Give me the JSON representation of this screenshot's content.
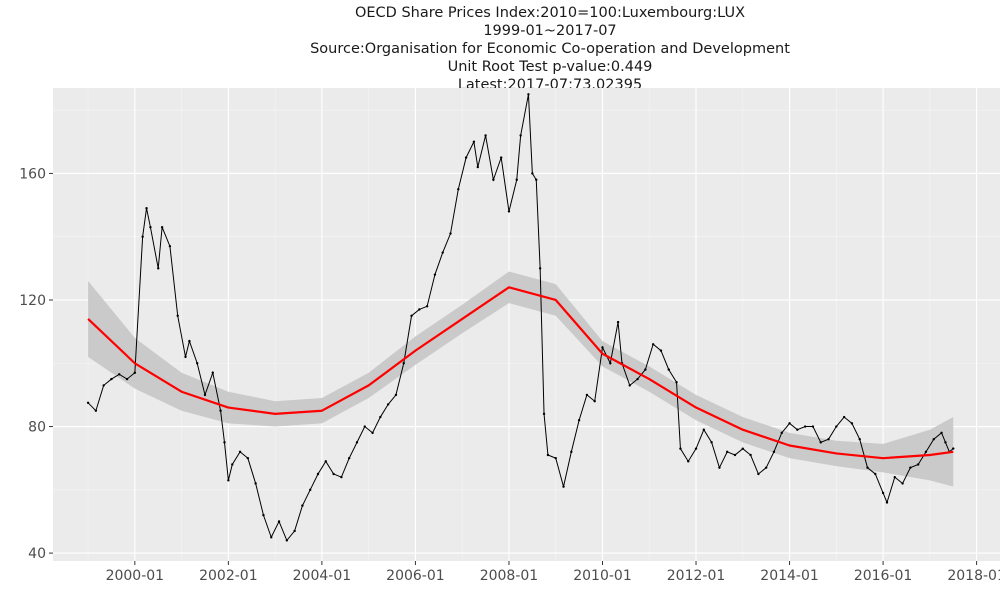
{
  "title_lines": [
    "OECD Share Prices Index:2010=100:Luxembourg:LUX",
    "1999-01~2017-07",
    "Source:Organisation for Economic Co-operation and Development",
    "Unit Root Test p-value:0.449",
    "Latest:2017-07:73.02395"
  ],
  "chart_data": {
    "type": "line",
    "title": "OECD Share Prices Index:2010=100:Luxembourg:LUX",
    "subtitle": "1999-01~2017-07",
    "xlabel": "",
    "ylabel": "",
    "x_ticks": [
      "2000-01",
      "2002-01",
      "2004-01",
      "2006-01",
      "2008-01",
      "2010-01",
      "2012-01",
      "2014-01",
      "2016-01",
      "2018-01"
    ],
    "y_ticks": [
      40,
      80,
      120,
      160
    ],
    "xlim": [
      "1998-04",
      "2018-07"
    ],
    "ylim": [
      37.5,
      187
    ],
    "grid": true,
    "background": "#ebebeb",
    "colors": {
      "series": "#000000",
      "trend": "#ff0000",
      "band": "#c8c8c8",
      "grid_major": "#ffffff"
    },
    "series": [
      {
        "points": [
          [
            "1999-01",
            87.5
          ],
          [
            "1999-03",
            85
          ],
          [
            "1999-05",
            93
          ],
          [
            "1999-07",
            95
          ],
          [
            "1999-09",
            96.5
          ],
          [
            "1999-11",
            95
          ],
          [
            "2000-01",
            97
          ],
          [
            "2000-03",
            140
          ],
          [
            "2000-04",
            149
          ],
          [
            "2000-05",
            143
          ],
          [
            "2000-07",
            130
          ],
          [
            "2000-08",
            143
          ],
          [
            "2000-10",
            137
          ],
          [
            "2000-12",
            115
          ],
          [
            "2001-02",
            102
          ],
          [
            "2001-03",
            107
          ],
          [
            "2001-05",
            100
          ],
          [
            "2001-07",
            90
          ],
          [
            "2001-09",
            97
          ],
          [
            "2001-11",
            85
          ],
          [
            "2001-12",
            75
          ],
          [
            "2002-01",
            63
          ],
          [
            "2002-02",
            68
          ],
          [
            "2002-04",
            72
          ],
          [
            "2002-06",
            70
          ],
          [
            "2002-08",
            62
          ],
          [
            "2002-10",
            52
          ],
          [
            "2002-12",
            45
          ],
          [
            "2003-02",
            50
          ],
          [
            "2003-04",
            44
          ],
          [
            "2003-06",
            47
          ],
          [
            "2003-08",
            55
          ],
          [
            "2003-10",
            60
          ],
          [
            "2003-12",
            65
          ],
          [
            "2004-02",
            69
          ],
          [
            "2004-04",
            65
          ],
          [
            "2004-06",
            64
          ],
          [
            "2004-08",
            70
          ],
          [
            "2004-10",
            75
          ],
          [
            "2004-12",
            80
          ],
          [
            "2005-02",
            78
          ],
          [
            "2005-04",
            83
          ],
          [
            "2005-06",
            87
          ],
          [
            "2005-08",
            90
          ],
          [
            "2005-10",
            100
          ],
          [
            "2005-12",
            115
          ],
          [
            "2006-02",
            117
          ],
          [
            "2006-04",
            118
          ],
          [
            "2006-06",
            128
          ],
          [
            "2006-08",
            135
          ],
          [
            "2006-10",
            141
          ],
          [
            "2006-12",
            155
          ],
          [
            "2007-02",
            165
          ],
          [
            "2007-04",
            170
          ],
          [
            "2007-05",
            162
          ],
          [
            "2007-07",
            172
          ],
          [
            "2007-09",
            158
          ],
          [
            "2007-11",
            165
          ],
          [
            "2008-01",
            148
          ],
          [
            "2008-03",
            158
          ],
          [
            "2008-04",
            172
          ],
          [
            "2008-06",
            185
          ],
          [
            "2008-07",
            160
          ],
          [
            "2008-08",
            158
          ],
          [
            "2008-09",
            130
          ],
          [
            "2008-10",
            84
          ],
          [
            "2008-11",
            71
          ],
          [
            "2009-01",
            70
          ],
          [
            "2009-03",
            61
          ],
          [
            "2009-05",
            72
          ],
          [
            "2009-07",
            82
          ],
          [
            "2009-09",
            90
          ],
          [
            "2009-11",
            88
          ],
          [
            "2010-01",
            105
          ],
          [
            "2010-03",
            100
          ],
          [
            "2010-05",
            113
          ],
          [
            "2010-06",
            100
          ],
          [
            "2010-08",
            93
          ],
          [
            "2010-10",
            95
          ],
          [
            "2010-12",
            98
          ],
          [
            "2011-02",
            106
          ],
          [
            "2011-04",
            104
          ],
          [
            "2011-06",
            98
          ],
          [
            "2011-08",
            94
          ],
          [
            "2011-09",
            73
          ],
          [
            "2011-11",
            69
          ],
          [
            "2012-01",
            73
          ],
          [
            "2012-03",
            79
          ],
          [
            "2012-05",
            75
          ],
          [
            "2012-07",
            67
          ],
          [
            "2012-09",
            72
          ],
          [
            "2012-11",
            71
          ],
          [
            "2013-01",
            73
          ],
          [
            "2013-03",
            71
          ],
          [
            "2013-05",
            65
          ],
          [
            "2013-07",
            67
          ],
          [
            "2013-09",
            72
          ],
          [
            "2013-11",
            78
          ],
          [
            "2014-01",
            81
          ],
          [
            "2014-03",
            79
          ],
          [
            "2014-05",
            80
          ],
          [
            "2014-07",
            80
          ],
          [
            "2014-09",
            75
          ],
          [
            "2014-11",
            76
          ],
          [
            "2015-01",
            80
          ],
          [
            "2015-03",
            83
          ],
          [
            "2015-05",
            81
          ],
          [
            "2015-07",
            76
          ],
          [
            "2015-09",
            67
          ],
          [
            "2015-11",
            65
          ],
          [
            "2016-01",
            59
          ],
          [
            "2016-02",
            56
          ],
          [
            "2016-04",
            64
          ],
          [
            "2016-06",
            62
          ],
          [
            "2016-08",
            67
          ],
          [
            "2016-10",
            68
          ],
          [
            "2016-12",
            72
          ],
          [
            "2017-02",
            76
          ],
          [
            "2017-04",
            78
          ],
          [
            "2017-05",
            75
          ],
          [
            "2017-06",
            72
          ],
          [
            "2017-07",
            73.02395
          ]
        ]
      }
    ],
    "trend": [
      [
        "1999-01",
        114
      ],
      [
        "2000-01",
        100
      ],
      [
        "2001-01",
        91
      ],
      [
        "2002-01",
        86
      ],
      [
        "2003-01",
        84
      ],
      [
        "2004-01",
        85
      ],
      [
        "2005-01",
        93
      ],
      [
        "2006-01",
        104
      ],
      [
        "2007-01",
        114
      ],
      [
        "2008-01",
        124
      ],
      [
        "2009-01",
        120
      ],
      [
        "2010-01",
        103
      ],
      [
        "2011-01",
        95
      ],
      [
        "2012-01",
        86
      ],
      [
        "2013-01",
        79
      ],
      [
        "2014-01",
        74
      ],
      [
        "2015-01",
        71.5
      ],
      [
        "2016-01",
        70
      ],
      [
        "2017-01",
        71
      ],
      [
        "2017-07",
        72
      ]
    ],
    "band_halfwidth": [
      12,
      8,
      6,
      5,
      4,
      4,
      4,
      4.5,
      4.5,
      5,
      5,
      4,
      4,
      4,
      4,
      4,
      4,
      4.5,
      8,
      11
    ]
  }
}
